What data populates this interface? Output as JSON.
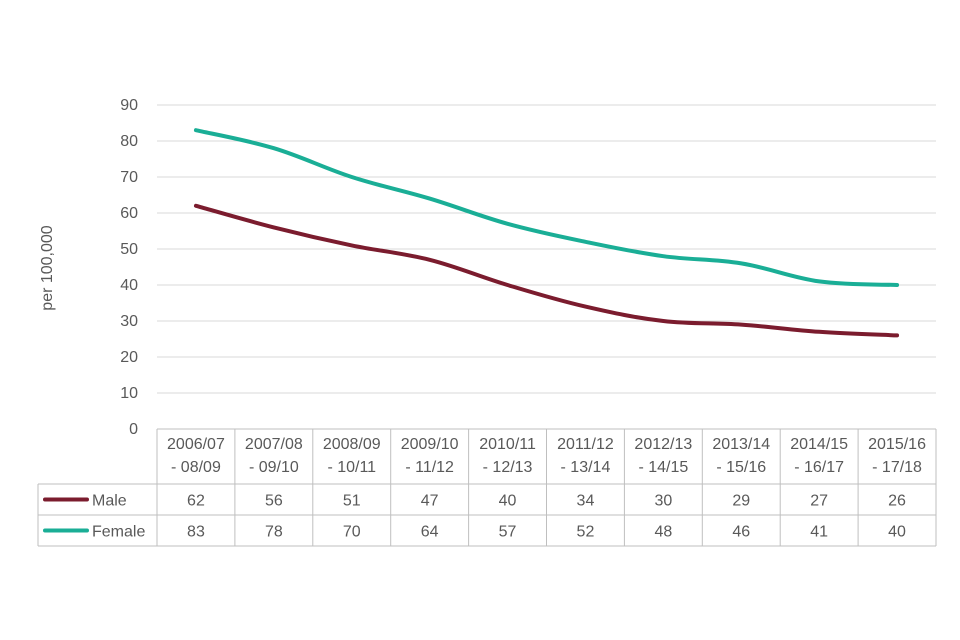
{
  "chart_data": {
    "type": "line",
    "title": "",
    "xlabel": "",
    "ylabel": "per 100,000",
    "ylim": [
      0,
      90
    ],
    "yticks": [
      0,
      10,
      20,
      30,
      40,
      50,
      60,
      70,
      80,
      90
    ],
    "grid": true,
    "legend_position": "data-table",
    "categories": [
      [
        "2006/07",
        "- 08/09"
      ],
      [
        "2007/08",
        "- 09/10"
      ],
      [
        "2008/09",
        "- 10/11"
      ],
      [
        "2009/10",
        "- 11/12"
      ],
      [
        "2010/11",
        "- 12/13"
      ],
      [
        "2011/12",
        "- 13/14"
      ],
      [
        "2012/13",
        "- 14/15"
      ],
      [
        "2013/14",
        "- 15/16"
      ],
      [
        "2014/15",
        "- 16/17"
      ],
      [
        "2015/16",
        "- 17/18"
      ]
    ],
    "series": [
      {
        "name": "Male",
        "color": "#7b1c2e",
        "values": [
          62,
          56,
          51,
          47,
          40,
          34,
          30,
          29,
          27,
          26
        ]
      },
      {
        "name": "Female",
        "color": "#1aae96",
        "values": [
          83,
          78,
          70,
          64,
          57,
          52,
          48,
          46,
          41,
          40
        ]
      }
    ]
  }
}
